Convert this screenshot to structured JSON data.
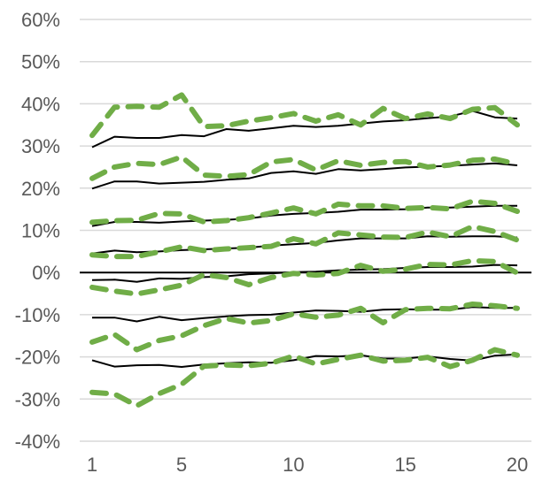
{
  "chart_data": {
    "type": "line",
    "title": "",
    "xlabel": "",
    "ylabel": "",
    "x": [
      1,
      2,
      3,
      4,
      5,
      6,
      7,
      8,
      9,
      10,
      11,
      12,
      13,
      14,
      15,
      16,
      17,
      18,
      19,
      20
    ],
    "xticks": [
      1,
      5,
      10,
      15,
      20
    ],
    "xtick_labels": [
      "1",
      "5",
      "10",
      "15",
      "20"
    ],
    "ylim": [
      -40,
      60
    ],
    "yticks": [
      -40,
      -30,
      -20,
      -10,
      0,
      10,
      20,
      30,
      40,
      50,
      60
    ],
    "ytick_labels": [
      "-40%",
      "-30%",
      "-20%",
      "-10%",
      "0%",
      "10%",
      "20%",
      "30%",
      "40%",
      "50%",
      "60%"
    ],
    "grid": "horizontal",
    "legend": "none",
    "colors": {
      "solid": "#000000",
      "dashed": "#70AD47",
      "grid": "#D9D9D9",
      "zero_line": "#000000"
    },
    "series": [
      {
        "style": "solid",
        "values": [
          29.7,
          32.2,
          31.9,
          31.9,
          32.6,
          32.3,
          34.0,
          33.6,
          34.2,
          34.8,
          34.5,
          34.8,
          35.3,
          35.8,
          36.1,
          36.6,
          37.0,
          38.3,
          36.8,
          36.5
        ]
      },
      {
        "style": "dashed",
        "values": [
          32.5,
          39.2,
          39.4,
          39.2,
          42.1,
          34.6,
          34.8,
          35.9,
          36.7,
          37.7,
          35.9,
          37.4,
          35.0,
          38.9,
          36.5,
          37.6,
          36.5,
          38.7,
          39.1,
          35.0
        ]
      },
      {
        "style": "solid",
        "values": [
          19.9,
          21.6,
          21.6,
          21.1,
          21.3,
          21.5,
          22.0,
          22.3,
          23.6,
          24.0,
          23.4,
          24.5,
          24.2,
          24.5,
          24.9,
          25.1,
          25.3,
          25.6,
          25.9,
          25.4
        ]
      },
      {
        "style": "dashed",
        "values": [
          22.3,
          25.0,
          25.9,
          25.6,
          27.4,
          23.1,
          22.8,
          23.2,
          26.2,
          26.8,
          24.3,
          26.5,
          25.4,
          26.1,
          26.3,
          25.0,
          25.5,
          26.6,
          26.9,
          25.7
        ]
      },
      {
        "style": "solid",
        "values": [
          11.0,
          12.0,
          12.0,
          11.8,
          12.1,
          12.3,
          12.5,
          12.8,
          13.5,
          13.9,
          14.1,
          14.4,
          14.9,
          14.9,
          15.0,
          15.4,
          15.4,
          15.6,
          15.8,
          15.8
        ]
      },
      {
        "style": "dashed",
        "values": [
          11.9,
          12.3,
          12.4,
          14.0,
          13.9,
          12.0,
          12.3,
          13.0,
          14.1,
          15.3,
          13.9,
          16.2,
          15.8,
          15.8,
          15.2,
          15.4,
          15.1,
          16.9,
          16.4,
          14.5
        ]
      },
      {
        "style": "solid",
        "values": [
          4.5,
          5.2,
          4.8,
          5.0,
          5.3,
          5.5,
          5.7,
          5.9,
          6.4,
          6.7,
          7.0,
          7.6,
          8.1,
          8.1,
          8.1,
          8.6,
          8.5,
          8.6,
          8.6,
          8.3
        ]
      },
      {
        "style": "dashed",
        "values": [
          4.2,
          3.8,
          3.8,
          4.9,
          6.1,
          5.2,
          5.6,
          5.9,
          6.2,
          8.0,
          6.8,
          9.4,
          8.9,
          8.4,
          8.3,
          9.6,
          8.5,
          10.9,
          9.7,
          7.7
        ]
      },
      {
        "style": "solid",
        "values": [
          -1.8,
          -1.7,
          -2.2,
          -1.4,
          -1.5,
          -1.1,
          -0.9,
          -0.4,
          -0.2,
          0.1,
          0.2,
          0.5,
          0.7,
          0.8,
          1.1,
          1.3,
          1.3,
          1.4,
          1.8,
          1.7
        ]
      },
      {
        "style": "dashed",
        "values": [
          -3.5,
          -4.4,
          -5.1,
          -4.1,
          -3.0,
          -0.5,
          -1.2,
          -2.9,
          -1.2,
          -0.2,
          -0.6,
          -0.2,
          1.7,
          0.3,
          0.8,
          1.9,
          1.8,
          2.8,
          2.6,
          -0.1
        ]
      },
      {
        "style": "solid",
        "values": [
          -10.7,
          -10.7,
          -11.6,
          -10.5,
          -11.3,
          -10.8,
          -10.4,
          -10.1,
          -10.0,
          -9.5,
          -9.0,
          -9.1,
          -9.3,
          -8.8,
          -8.7,
          -8.8,
          -8.8,
          -8.2,
          -8.4,
          -8.4
        ]
      },
      {
        "style": "dashed",
        "values": [
          -16.5,
          -14.7,
          -18.3,
          -16.1,
          -15.0,
          -12.6,
          -10.9,
          -12.0,
          -11.4,
          -9.8,
          -10.6,
          -10.1,
          -8.5,
          -11.9,
          -8.8,
          -8.5,
          -8.6,
          -7.5,
          -7.9,
          -8.5
        ]
      },
      {
        "style": "solid",
        "values": [
          -20.8,
          -22.3,
          -22.0,
          -21.9,
          -22.4,
          -21.8,
          -21.5,
          -21.3,
          -21.4,
          -20.8,
          -19.8,
          -19.9,
          -19.6,
          -20.4,
          -20.4,
          -19.9,
          -20.5,
          -20.9,
          -19.7,
          -19.4
        ]
      },
      {
        "style": "dashed",
        "values": [
          -28.4,
          -28.8,
          -31.6,
          -28.7,
          -26.5,
          -22.2,
          -21.9,
          -22.1,
          -21.5,
          -19.8,
          -21.7,
          -20.6,
          -19.6,
          -21.0,
          -20.8,
          -20.1,
          -22.3,
          -20.8,
          -18.3,
          -19.6
        ]
      }
    ]
  }
}
